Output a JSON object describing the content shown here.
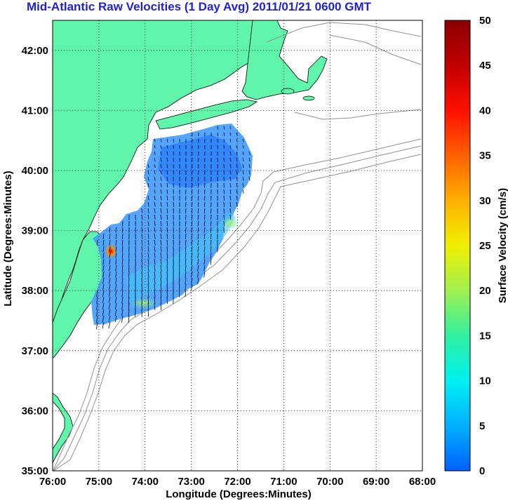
{
  "title": "Mid-Atlantic Raw Velocities (1 Day Avg) 2011/01/21 0600 GMT",
  "map": {
    "xlabel": "Longitude (Degrees:Minutes)",
    "ylabel": "Latitude (Degrees:Minutes)",
    "lon_range": [
      -76,
      -68
    ],
    "lat_range": [
      35,
      42.5
    ],
    "lon_ticks": [
      "76:00",
      "75:00",
      "74:00",
      "73:00",
      "72:00",
      "71:00",
      "70:00",
      "69:00",
      "68:00"
    ],
    "lat_ticks": [
      "35:00",
      "36:00",
      "37:00",
      "38:00",
      "39:00",
      "40:00",
      "41:00",
      "42:00"
    ],
    "grid": true,
    "land_color": "#5ff5aa",
    "isobath_color": "#909090"
  },
  "colorbar": {
    "label": "Surface Velocity (cm/s)",
    "min": 0,
    "max": 50,
    "ticks": [
      "0",
      "5",
      "10",
      "15",
      "20",
      "25",
      "30",
      "35",
      "40",
      "45",
      "50"
    ],
    "stops": [
      "#0060ff",
      "#00b0ff",
      "#00f0f0",
      "#30f0a0",
      "#a0f050",
      "#f0f000",
      "#ffb000",
      "#ff6000",
      "#ff1000",
      "#c00000",
      "#8b0000"
    ]
  }
}
